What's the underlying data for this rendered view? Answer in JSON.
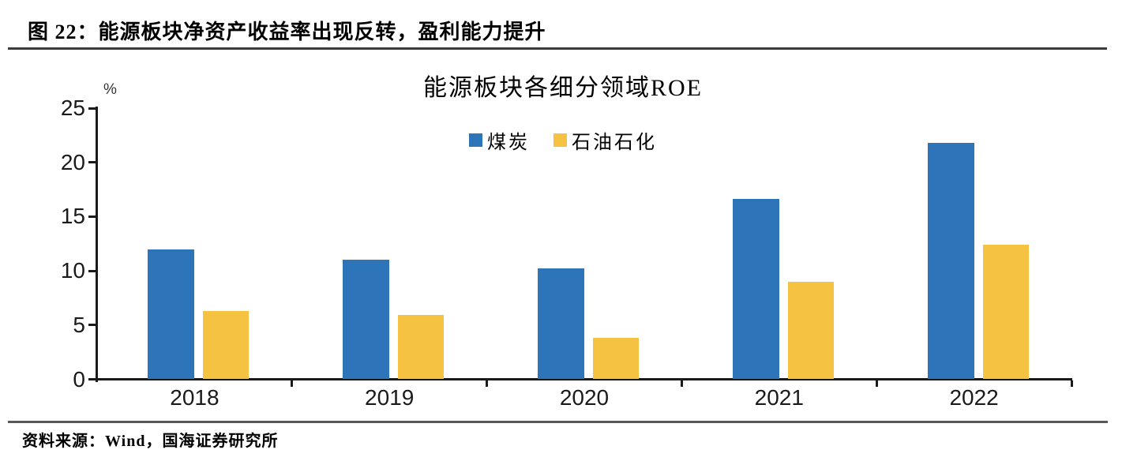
{
  "figure": {
    "caption": "图 22：能源板块净资产收益率出现反转，盈利能力提升",
    "source": "资料来源：Wind，国海证券研究所"
  },
  "chart_data": {
    "type": "bar",
    "title": "能源板块各细分领域ROE",
    "unit_label": "%",
    "categories": [
      "2018",
      "2019",
      "2020",
      "2021",
      "2022"
    ],
    "series": [
      {
        "name": "煤炭",
        "color": "#2E74B8",
        "values": [
          12.0,
          11.0,
          10.2,
          16.6,
          21.8
        ]
      },
      {
        "name": "石油石化",
        "color": "#F5C242",
        "values": [
          6.3,
          5.9,
          3.8,
          9.0,
          12.4
        ]
      }
    ],
    "ylim": [
      0,
      25
    ],
    "yticks": [
      0,
      5,
      10,
      15,
      20,
      25
    ],
    "grid": false,
    "legend_position": "top-center"
  },
  "colors": {
    "axis": "#1a1a1a",
    "rule_top": "#3b3b3b",
    "rule_bottom": "#595959",
    "bar_blue": "#2E74B8",
    "bar_yellow": "#F5C242"
  }
}
